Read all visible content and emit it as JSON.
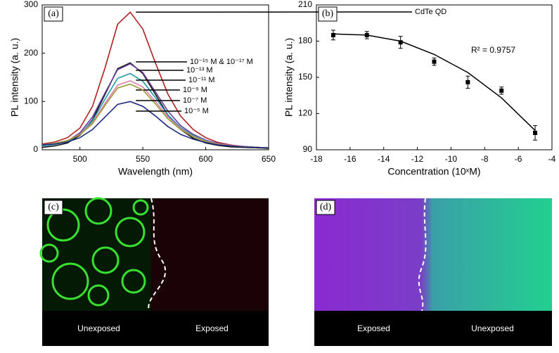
{
  "chart_data": [
    {
      "type": "line",
      "panel": "(a)",
      "xlabel": "Wavelength (nm)",
      "ylabel": "PL intensity (a. u.)",
      "xlim": [
        470,
        650
      ],
      "ylim": [
        0,
        300
      ],
      "xticks": [
        500,
        550,
        600,
        650
      ],
      "yticks": [
        0,
        100,
        200,
        300
      ],
      "x": [
        470,
        480,
        490,
        500,
        510,
        520,
        530,
        540,
        550,
        560,
        570,
        580,
        590,
        600,
        610,
        620,
        630,
        640,
        650
      ],
      "series": [
        {
          "name": "CdTe QD",
          "color": "#b0201e",
          "values": [
            12,
            16,
            25,
            45,
            90,
            170,
            260,
            285,
            250,
            180,
            115,
            70,
            42,
            25,
            15,
            10,
            7,
            5,
            4
          ]
        },
        {
          "name": "10⁻¹⁵ M & 10⁻¹⁷ M",
          "color": "#111111",
          "values": [
            5,
            8,
            14,
            30,
            62,
            115,
            168,
            180,
            158,
            115,
            72,
            42,
            24,
            14,
            9,
            6,
            5,
            4,
            3
          ]
        },
        {
          "name": "10⁻¹³ M",
          "color": "#6a3aa0",
          "values": [
            8,
            11,
            18,
            35,
            68,
            118,
            166,
            178,
            160,
            120,
            80,
            50,
            32,
            20,
            13,
            9,
            7,
            5,
            4
          ]
        },
        {
          "name": "10⁻¹¹ M",
          "color": "#1f9aa8",
          "values": [
            8,
            11,
            17,
            32,
            60,
            105,
            148,
            158,
            142,
            108,
            72,
            46,
            30,
            19,
            12,
            9,
            7,
            5,
            4
          ]
        },
        {
          "name": "10⁻⁹ M",
          "color": "#e07ab0",
          "values": [
            10,
            13,
            19,
            32,
            56,
            96,
            134,
            143,
            130,
            100,
            68,
            44,
            28,
            18,
            12,
            9,
            7,
            5,
            4
          ]
        },
        {
          "name": "10⁻⁷ M",
          "color": "#9a9a30",
          "values": [
            10,
            13,
            19,
            31,
            54,
            92,
            128,
            136,
            124,
            95,
            64,
            42,
            27,
            17,
            11,
            8,
            6,
            5,
            4
          ]
        },
        {
          "name": "10⁻⁵ M",
          "color": "#1c2a80",
          "values": [
            10,
            12,
            16,
            25,
            42,
            68,
            94,
            100,
            90,
            70,
            48,
            32,
            22,
            15,
            10,
            8,
            6,
            5,
            4
          ]
        }
      ]
    },
    {
      "type": "scatter",
      "panel": "(b)",
      "xlabel": "Concentration (10ˣM)",
      "ylabel": "PL intensity (a. u.)",
      "xlim": [
        -18,
        -4
      ],
      "ylim": [
        90,
        210
      ],
      "xticks": [
        -18,
        -16,
        -14,
        -12,
        -10,
        -8,
        -6,
        -4
      ],
      "yticks": [
        90,
        120,
        150,
        180,
        210
      ],
      "x": [
        -17,
        -15,
        -13,
        -11,
        -9,
        -7,
        -5
      ],
      "values": [
        185,
        185,
        179,
        163,
        146,
        139,
        104
      ],
      "errors": [
        4,
        3,
        5,
        3,
        5,
        3,
        6
      ],
      "fit": [
        186,
        185,
        180,
        169,
        154,
        133,
        106
      ],
      "color": "#000000",
      "annotation": "R² = 0.9757"
    }
  ],
  "images": [
    {
      "panel": "(c)",
      "labels": [
        "Unexposed",
        "Exposed"
      ]
    },
    {
      "panel": "(d)",
      "labels": [
        "Exposed",
        "Unexposed"
      ]
    }
  ]
}
